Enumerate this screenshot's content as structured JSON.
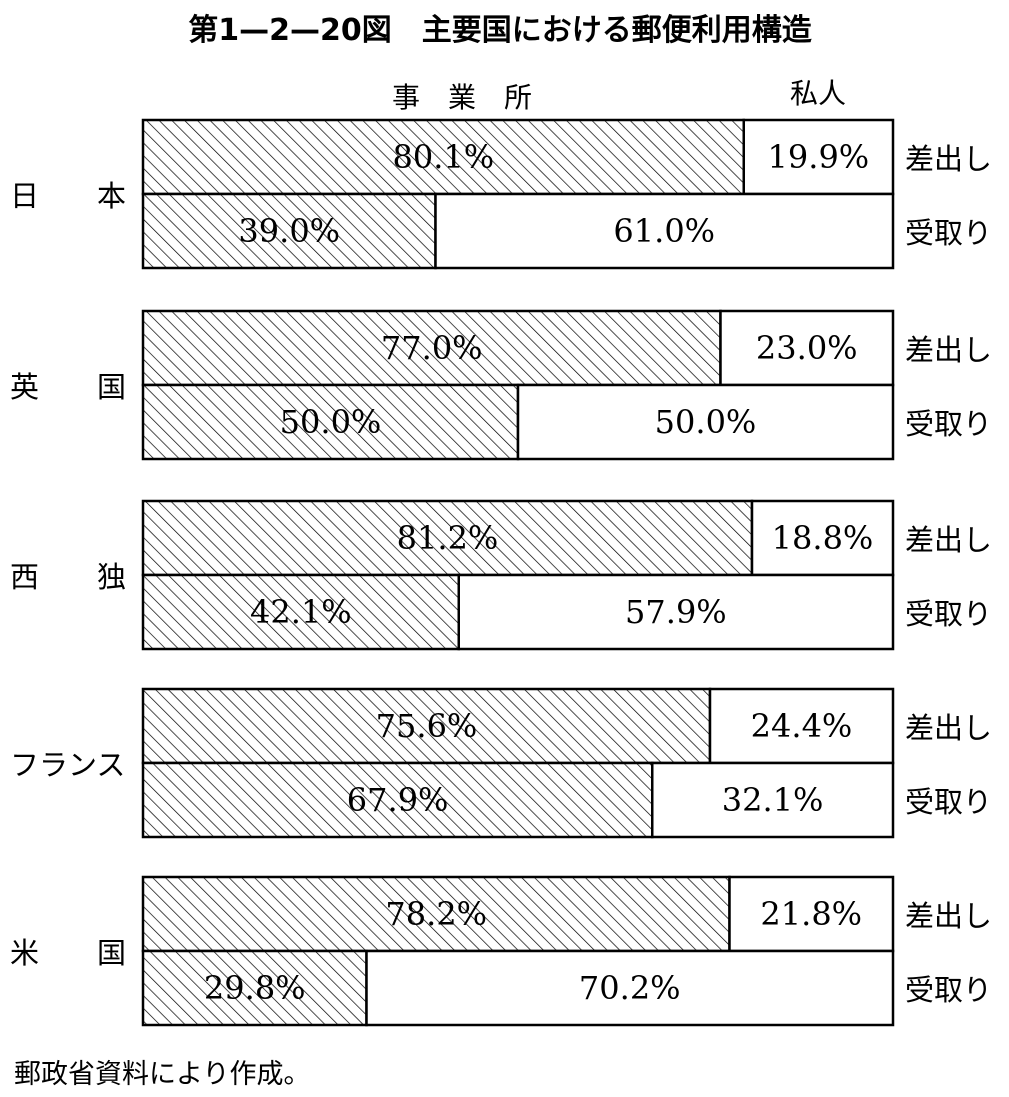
{
  "chart_data": {
    "type": "bar",
    "stacked": true,
    "orientation": "horizontal",
    "title": "第1—2—20図　主要国における郵便利用構造",
    "column_headers": {
      "business": "事　業　所",
      "private": "私人"
    },
    "row_types": [
      "差出し",
      "受取り"
    ],
    "countries": [
      {
        "name": "日　　本",
        "rows": [
          {
            "business": 80.1,
            "private": 19.9
          },
          {
            "business": 39.0,
            "private": 61.0
          }
        ]
      },
      {
        "name": "英　　国",
        "rows": [
          {
            "business": 77.0,
            "private": 23.0
          },
          {
            "business": 50.0,
            "private": 50.0
          }
        ]
      },
      {
        "name": "西　　独",
        "rows": [
          {
            "business": 81.2,
            "private": 18.8
          },
          {
            "business": 42.1,
            "private": 57.9
          }
        ]
      },
      {
        "name": "フランス",
        "rows": [
          {
            "business": 75.6,
            "private": 24.4
          },
          {
            "business": 67.9,
            "private": 32.1
          }
        ]
      },
      {
        "name": "米　　国",
        "rows": [
          {
            "business": 78.2,
            "private": 21.8
          },
          {
            "business": 29.8,
            "private": 70.2
          }
        ]
      }
    ],
    "series": [
      {
        "name": "事　業　所",
        "pattern": "diagonal-hatch"
      },
      {
        "name": "私人",
        "pattern": "white"
      }
    ],
    "unit": "%",
    "xlim": [
      0,
      100
    ],
    "grid": false,
    "legend": "top"
  },
  "source_note": "郵政省資料により作成。",
  "colors": {
    "stroke": "#000000",
    "fill_private": "#ffffff",
    "hatch": "#000000"
  }
}
